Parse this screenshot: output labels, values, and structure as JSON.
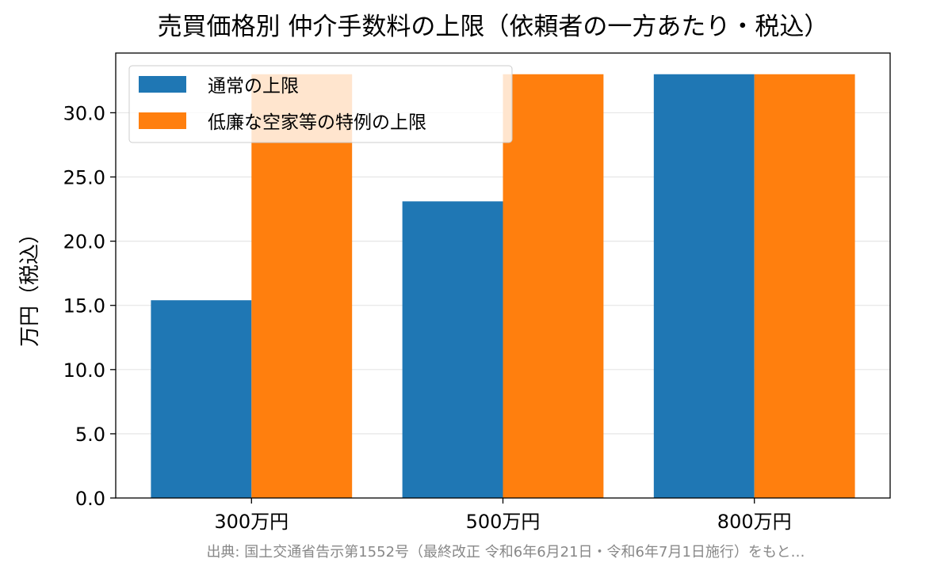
{
  "chart_data": {
    "type": "bar",
    "title": "売買価格別 仲介手数料の上限（依頼者の一方あたり・税込）",
    "xlabel": "",
    "ylabel": "万円（税込）",
    "categories": [
      "300万円",
      "500万円",
      "800万円"
    ],
    "series": [
      {
        "name": "通常の上限",
        "values": [
          15.4,
          23.1,
          33.0
        ],
        "color": "#1f77b4"
      },
      {
        "name": "低廉な空家等の特例の上限",
        "values": [
          33.0,
          33.0,
          33.0
        ],
        "color": "#ff7f0e"
      }
    ],
    "ylim": [
      0,
      34.65
    ],
    "yticks": [
      "0.0",
      "5.0",
      "10.0",
      "15.0",
      "20.0",
      "25.0",
      "30.0"
    ],
    "grid": "y",
    "legend": "top-left"
  },
  "source": "出典: 国土交通省告示第1552号（最終改正 令和6年6月21日・令和6年7月1日施行）をもと…"
}
